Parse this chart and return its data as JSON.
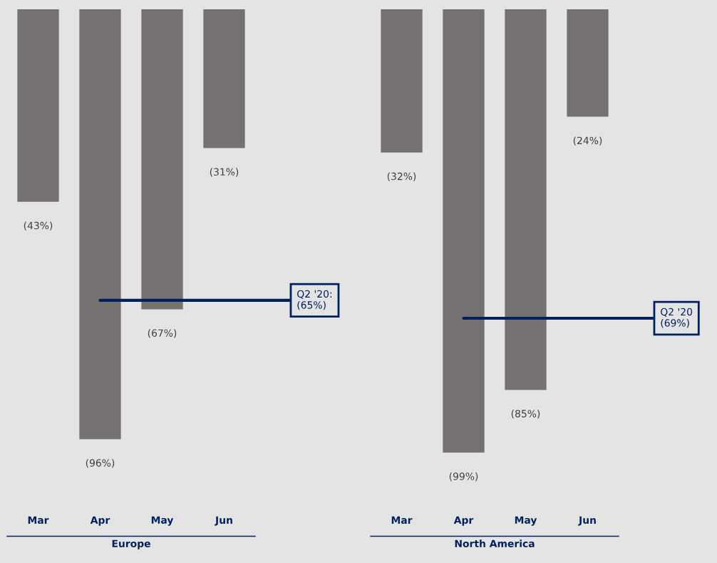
{
  "chart_data": [
    {
      "type": "bar",
      "categories": [
        "Mar",
        "Apr",
        "May",
        "Jun"
      ],
      "xlabel": "Europe",
      "values": [
        -43,
        -96,
        -67,
        -31
      ],
      "value_labels": [
        "(43%)",
        "(96%)",
        "(67%)",
        "(31%)"
      ],
      "color": "#767171",
      "tick_labels": "x",
      "ref_lines": [
        {
          "axis": "y",
          "value": -65,
          "label": "Q2 '20:\n(65%)",
          "color": "#002060",
          "line_style": "solid"
        }
      ]
    },
    {
      "type": "bar",
      "categories": [
        "Mar",
        "Apr",
        "May",
        "Jun"
      ],
      "xlabel": "North America",
      "values": [
        -32,
        -99,
        -85,
        -24
      ],
      "value_labels": [
        "(32%)",
        "(99%)",
        "(85%)",
        "(24%)"
      ],
      "color": "#767171",
      "tick_labels": "x",
      "ref_lines": [
        {
          "axis": "y",
          "value": -69,
          "label": "Q2 '20\n(69%)",
          "color": "#002060",
          "line_style": "solid"
        }
      ]
    }
  ]
}
